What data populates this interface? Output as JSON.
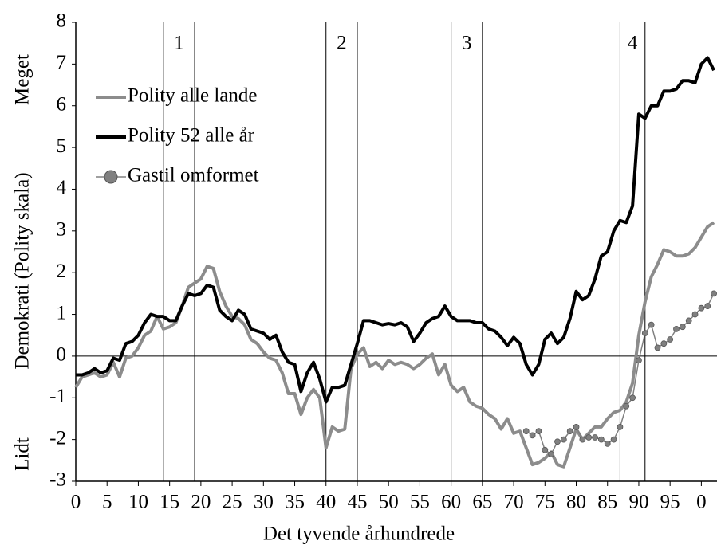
{
  "chart_data": {
    "type": "line",
    "xlabel": "Det tyvende århundrede",
    "ylabel": "Demokrati (Polity skala)",
    "ylabel_low": "Lidt",
    "ylabel_high": "Meget",
    "xlim": [
      0,
      102.5
    ],
    "ylim": [
      -3,
      8
    ],
    "xticks": [
      0,
      5,
      10,
      15,
      20,
      25,
      30,
      35,
      40,
      45,
      50,
      55,
      60,
      65,
      70,
      75,
      80,
      85,
      90,
      95,
      {
        "value": 100,
        "label": "0"
      }
    ],
    "yticks": [
      -3,
      -2,
      -1,
      0,
      1,
      2,
      3,
      4,
      5,
      6,
      7,
      8
    ],
    "legend": "upper left",
    "periods": [
      {
        "label": "1",
        "start": 14,
        "end": 19
      },
      {
        "label": "2",
        "start": 40,
        "end": 45
      },
      {
        "label": "3",
        "start": 60,
        "end": 65
      },
      {
        "label": "4",
        "start": 87,
        "end": 91
      }
    ],
    "x": [
      0,
      1,
      2,
      3,
      4,
      5,
      6,
      7,
      8,
      9,
      10,
      11,
      12,
      13,
      14,
      15,
      16,
      17,
      18,
      19,
      20,
      21,
      22,
      23,
      24,
      25,
      26,
      27,
      28,
      29,
      30,
      31,
      32,
      33,
      34,
      35,
      36,
      37,
      38,
      39,
      40,
      41,
      42,
      43,
      44,
      45,
      46,
      47,
      48,
      49,
      50,
      51,
      52,
      53,
      54,
      55,
      56,
      57,
      58,
      59,
      60,
      61,
      62,
      63,
      64,
      65,
      66,
      67,
      68,
      69,
      70,
      71,
      72,
      73,
      74,
      75,
      76,
      77,
      78,
      79,
      80,
      81,
      82,
      83,
      84,
      85,
      86,
      87,
      88,
      89,
      90,
      91,
      92,
      93,
      94,
      95,
      96,
      97,
      98,
      99,
      100,
      101,
      102
    ],
    "series": [
      {
        "name": "Polity alle lande",
        "color": "#8c8c8c",
        "marker": false,
        "values": [
          -0.75,
          -0.5,
          -0.45,
          -0.4,
          -0.5,
          -0.45,
          -0.15,
          -0.5,
          -0.05,
          0.0,
          0.2,
          0.5,
          0.6,
          0.95,
          0.65,
          0.7,
          0.8,
          1.2,
          1.65,
          1.75,
          1.85,
          2.15,
          2.1,
          1.55,
          1.2,
          0.95,
          0.9,
          0.75,
          0.4,
          0.3,
          0.1,
          -0.05,
          -0.1,
          -0.4,
          -0.9,
          -0.9,
          -1.4,
          -1.0,
          -0.8,
          -1.0,
          -2.2,
          -1.7,
          -1.8,
          -1.75,
          -0.3,
          0.05,
          0.2,
          -0.25,
          -0.15,
          -0.3,
          -0.1,
          -0.2,
          -0.15,
          -0.2,
          -0.3,
          -0.2,
          -0.05,
          0.05,
          -0.45,
          -0.2,
          -0.7,
          -0.85,
          -0.75,
          -1.1,
          -1.2,
          -1.25,
          -1.4,
          -1.5,
          -1.75,
          -1.5,
          -1.85,
          -1.8,
          -2.2,
          -2.6,
          -2.55,
          -2.45,
          -2.3,
          -2.6,
          -2.65,
          -2.2,
          -1.75,
          -2.0,
          -1.85,
          -1.7,
          -1.7,
          -1.5,
          -1.35,
          -1.3,
          -1.1,
          -0.65,
          0.5,
          1.3,
          1.9,
          2.2,
          2.55,
          2.5,
          2.4,
          2.4,
          2.45,
          2.6,
          2.85,
          3.1,
          3.2
        ]
      },
      {
        "name": "Polity 52 alle år",
        "color": "#000000",
        "marker": false,
        "values": [
          -0.45,
          -0.45,
          -0.4,
          -0.3,
          -0.4,
          -0.35,
          -0.05,
          -0.1,
          0.3,
          0.35,
          0.5,
          0.8,
          1.0,
          0.95,
          0.95,
          0.85,
          0.85,
          1.2,
          1.5,
          1.45,
          1.5,
          1.7,
          1.65,
          1.1,
          0.95,
          0.85,
          1.1,
          1.0,
          0.65,
          0.6,
          0.55,
          0.4,
          0.5,
          0.1,
          -0.15,
          -0.2,
          -0.85,
          -0.4,
          -0.15,
          -0.55,
          -1.1,
          -0.75,
          -0.75,
          -0.7,
          -0.2,
          0.3,
          0.85,
          0.85,
          0.8,
          0.75,
          0.78,
          0.75,
          0.8,
          0.7,
          0.35,
          0.55,
          0.8,
          0.9,
          0.95,
          1.2,
          0.95,
          0.85,
          0.85,
          0.85,
          0.8,
          0.8,
          0.65,
          0.6,
          0.45,
          0.25,
          0.45,
          0.3,
          -0.2,
          -0.45,
          -0.2,
          0.4,
          0.55,
          0.3,
          0.45,
          0.9,
          1.55,
          1.35,
          1.45,
          1.85,
          2.4,
          2.5,
          3.0,
          3.25,
          3.2,
          3.6,
          5.8,
          5.7,
          6.0,
          6.0,
          6.35,
          6.35,
          6.4,
          6.6,
          6.6,
          6.55,
          7.0,
          7.15,
          6.85
        ]
      },
      {
        "name": "Gastil omformet",
        "color": "#808080",
        "marker": true,
        "values": [
          null,
          null,
          null,
          null,
          null,
          null,
          null,
          null,
          null,
          null,
          null,
          null,
          null,
          null,
          null,
          null,
          null,
          null,
          null,
          null,
          null,
          null,
          null,
          null,
          null,
          null,
          null,
          null,
          null,
          null,
          null,
          null,
          null,
          null,
          null,
          null,
          null,
          null,
          null,
          null,
          null,
          null,
          null,
          null,
          null,
          null,
          null,
          null,
          null,
          null,
          null,
          null,
          null,
          null,
          null,
          null,
          null,
          null,
          null,
          null,
          null,
          null,
          null,
          null,
          null,
          null,
          null,
          null,
          null,
          null,
          null,
          null,
          -1.8,
          -1.9,
          -1.8,
          -2.25,
          -2.35,
          -2.05,
          -2.0,
          -1.8,
          -1.7,
          -2.0,
          -1.95,
          -1.95,
          -2.0,
          -2.1,
          -2.0,
          -1.7,
          -1.2,
          -1.0,
          -0.1,
          0.55,
          0.75,
          0.2,
          0.3,
          0.4,
          0.65,
          0.7,
          0.85,
          1.0,
          1.15,
          1.2,
          1.5
        ]
      }
    ]
  }
}
